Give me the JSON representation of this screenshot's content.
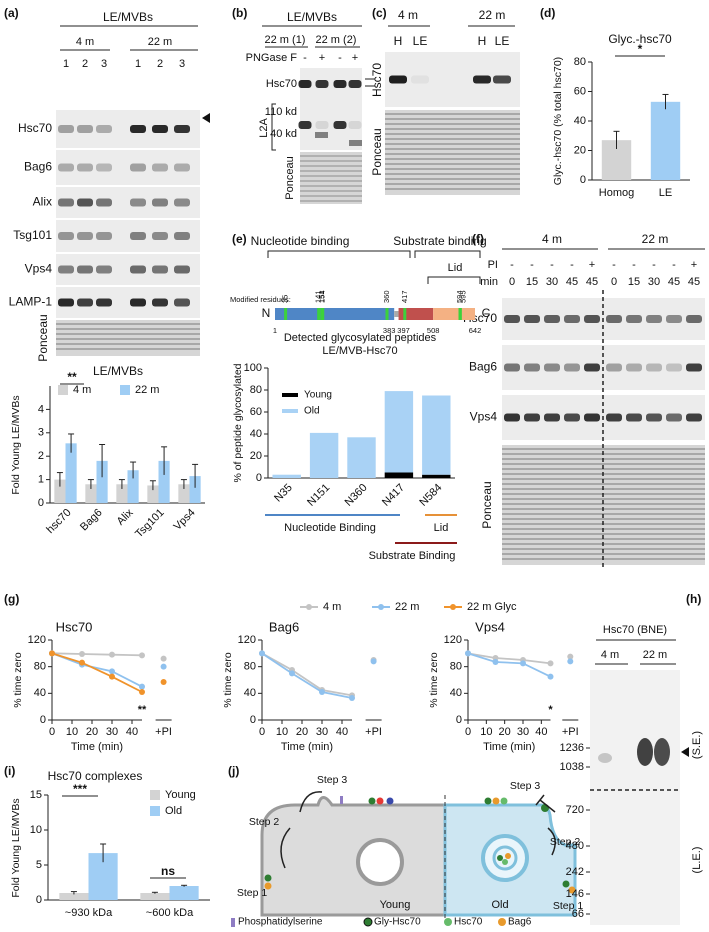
{
  "figure": {
    "panel_labels": [
      "(a)",
      "(b)",
      "(c)",
      "(d)",
      "(e)",
      "(f)",
      "(g)",
      "(h)",
      "(i)",
      "(j)"
    ]
  },
  "blots": {
    "a": {
      "header": "LE/MVBs",
      "groups": [
        "4 m",
        "22 m"
      ],
      "lanes": [
        "1",
        "2",
        "3",
        "1",
        "2",
        "3"
      ],
      "rows": [
        "Hsc70",
        "Bag6",
        "Alix",
        "Tsg101",
        "Vps4",
        "LAMP-1",
        "Ponceau"
      ]
    },
    "b": {
      "header": "LE/MVBs",
      "groups": [
        "22 m (1)",
        "22 m (2)"
      ],
      "treatment": "PNGase F",
      "signs": [
        "-",
        "+",
        "-",
        "+"
      ],
      "rows": [
        "Hsc70",
        "Ponceau"
      ],
      "bracket": "L2A",
      "sizes": [
        "110 kd",
        "40 kd"
      ]
    },
    "c": {
      "groups": [
        "4 m",
        "22 m"
      ],
      "lanes": [
        "H",
        "LE",
        "H",
        "LE"
      ],
      "rows": [
        "Hsc70",
        "Ponceau"
      ]
    },
    "f": {
      "groups": [
        "4 m",
        "22 m"
      ],
      "treatment": "PI",
      "signs": [
        "-",
        "-",
        "-",
        "-",
        "+",
        "-",
        "-",
        "-",
        "-",
        "+"
      ],
      "time_label": "min",
      "times": [
        0,
        15,
        30,
        45,
        45,
        0,
        15,
        30,
        45,
        45
      ],
      "rows": [
        "Hsc70",
        "Bag6",
        "Vps4",
        "Ponceau"
      ]
    },
    "h": {
      "title": "Hsc70 (BNE)",
      "groups": [
        "4 m",
        "22 m"
      ],
      "markers": [
        1236,
        1038,
        720,
        480,
        242,
        146,
        66
      ],
      "exposures": [
        "(S.E.)",
        "(L.E.)"
      ]
    }
  },
  "domain_map": {
    "domains": [
      "Nucleotide binding",
      "Substrate binding",
      "Lid"
    ],
    "residues_title": "Modified residues:",
    "residues": [
      35,
      141,
      151,
      154,
      360,
      417,
      594,
      595
    ],
    "boundaries": [
      1,
      383,
      397,
      508,
      642
    ],
    "termini": [
      "N",
      "C"
    ]
  },
  "chart_data": [
    {
      "type": "bar",
      "title": "LE/MVBs",
      "y_label": "Fold Young LE/MVBs",
      "categories": [
        "hsc70",
        "Bag6",
        "Alix",
        "Tsg101",
        "Vps4"
      ],
      "series": [
        {
          "name": "4 m",
          "color": "#d3d3d3",
          "values": [
            1.0,
            0.8,
            0.8,
            0.75,
            0.8
          ],
          "errors": [
            0.3,
            0.2,
            0.2,
            0.2,
            0.2
          ]
        },
        {
          "name": "22 m",
          "color": "#9fcdf4",
          "values": [
            2.55,
            1.8,
            1.4,
            1.8,
            1.15
          ],
          "errors": [
            0.4,
            0.7,
            0.35,
            0.6,
            0.5
          ]
        }
      ],
      "ylim": [
        0,
        5
      ],
      "yticks": [
        0,
        1,
        2,
        3,
        4
      ],
      "annotations": [
        "**"
      ]
    },
    {
      "type": "bar",
      "title": "Glyc.-hsc70",
      "y_label": "Glyc.-hsc70 (% total hsc70)",
      "categories": [
        "Homog",
        "LE"
      ],
      "values": [
        27,
        53
      ],
      "errors": [
        6,
        5
      ],
      "colors": [
        "#d3d3d3",
        "#9fcdf4"
      ],
      "ylim": [
        0,
        80
      ],
      "yticks": [
        0,
        20,
        40,
        60,
        80
      ],
      "annotations": [
        "*"
      ]
    },
    {
      "type": "stacked_bar",
      "title": [
        "Detected glycosylated peptides",
        "LE/MVB-Hsc70"
      ],
      "y_label": "% of peptide glycosylated",
      "categories": [
        "N35",
        "N151",
        "N360",
        "N417",
        "N584"
      ],
      "series": [
        {
          "name": "Young",
          "color": "#000000",
          "values": [
            0,
            0,
            0,
            5,
            3
          ]
        },
        {
          "name": "Old",
          "color": "#a9d2f5",
          "values": [
            3,
            41,
            37,
            74,
            72
          ]
        }
      ],
      "ylim": [
        0,
        100
      ],
      "yticks": [
        0,
        20,
        40,
        60,
        80,
        100
      ],
      "brackets": [
        "Nucleotide Binding",
        "Lid",
        "Substrate Binding"
      ]
    },
    {
      "type": "line",
      "title": "Hsc70",
      "x_label": "Time (min)",
      "y_label": "% time zero",
      "x": [
        0,
        15,
        30,
        45
      ],
      "xlim": [
        0,
        45
      ],
      "xticks": [
        0,
        10,
        20,
        30,
        40
      ],
      "ylim": [
        0,
        120
      ],
      "yticks": [
        0,
        40,
        80,
        120
      ],
      "pi_label": "+PI",
      "series": [
        {
          "name": "4 m",
          "color": "#c4c4c4",
          "values": [
            100,
            99,
            98,
            97
          ],
          "pi_value": 92
        },
        {
          "name": "22 m",
          "color": "#8fc1ee",
          "values": [
            100,
            83,
            73,
            50
          ],
          "pi_value": 80
        },
        {
          "name": "22 m Glyc",
          "color": "#f0932b",
          "values": [
            100,
            86,
            65,
            42
          ],
          "pi_value": 57
        }
      ],
      "annotations": [
        "**"
      ]
    },
    {
      "type": "line",
      "title": "Bag6",
      "x_label": "Time (min)",
      "y_label": "% time zero",
      "x": [
        0,
        15,
        30,
        45
      ],
      "xlim": [
        0,
        45
      ],
      "xticks": [
        0,
        10,
        20,
        30,
        40
      ],
      "ylim": [
        0,
        120
      ],
      "yticks": [
        0,
        40,
        80,
        120
      ],
      "pi_label": "+PI",
      "series": [
        {
          "name": "4 m",
          "color": "#c4c4c4",
          "values": [
            100,
            75,
            45,
            37
          ],
          "pi_value": 90
        },
        {
          "name": "22 m",
          "color": "#8fc1ee",
          "values": [
            100,
            70,
            42,
            33
          ],
          "pi_value": 88
        }
      ]
    },
    {
      "type": "line",
      "title": "Vps4",
      "x_label": "Time (min)",
      "y_label": "% time zero",
      "x": [
        0,
        15,
        30,
        45
      ],
      "xlim": [
        0,
        45
      ],
      "xticks": [
        0,
        10,
        20,
        30,
        40
      ],
      "ylim": [
        0,
        120
      ],
      "yticks": [
        0,
        40,
        80,
        120
      ],
      "pi_label": "+PI",
      "series": [
        {
          "name": "4 m",
          "color": "#c4c4c4",
          "values": [
            100,
            93,
            90,
            85
          ],
          "pi_value": 95
        },
        {
          "name": "22 m",
          "color": "#8fc1ee",
          "values": [
            100,
            87,
            85,
            65
          ],
          "pi_value": 88
        }
      ],
      "annotations": [
        "*"
      ]
    },
    {
      "type": "bar",
      "title": "Hsc70 complexes",
      "y_label": "Fold Young LE/MVBs",
      "categories": [
        "~930 kDa",
        "~600 kDa"
      ],
      "series": [
        {
          "name": "Young",
          "color": "#d3d3d3",
          "values": [
            1.0,
            1.0
          ],
          "errors": [
            0.2,
            0.1
          ]
        },
        {
          "name": "Old",
          "color": "#9fcdf4",
          "values": [
            6.7,
            2.0
          ],
          "errors": [
            1.3,
            0.1
          ]
        }
      ],
      "ylim": [
        0,
        15
      ],
      "yticks": [
        0,
        5,
        10,
        15
      ],
      "annotations": [
        "***",
        "ns"
      ]
    }
  ],
  "model": {
    "steps": [
      "Step 1",
      "Step 2",
      "Step 3",
      "Step 3",
      "Step 2",
      "Step 1"
    ],
    "cells": [
      "Young",
      "Old"
    ],
    "legend": [
      "Phosphatidylserine",
      "Gly-Hsc70",
      "Hsc70",
      "Bag6"
    ]
  }
}
